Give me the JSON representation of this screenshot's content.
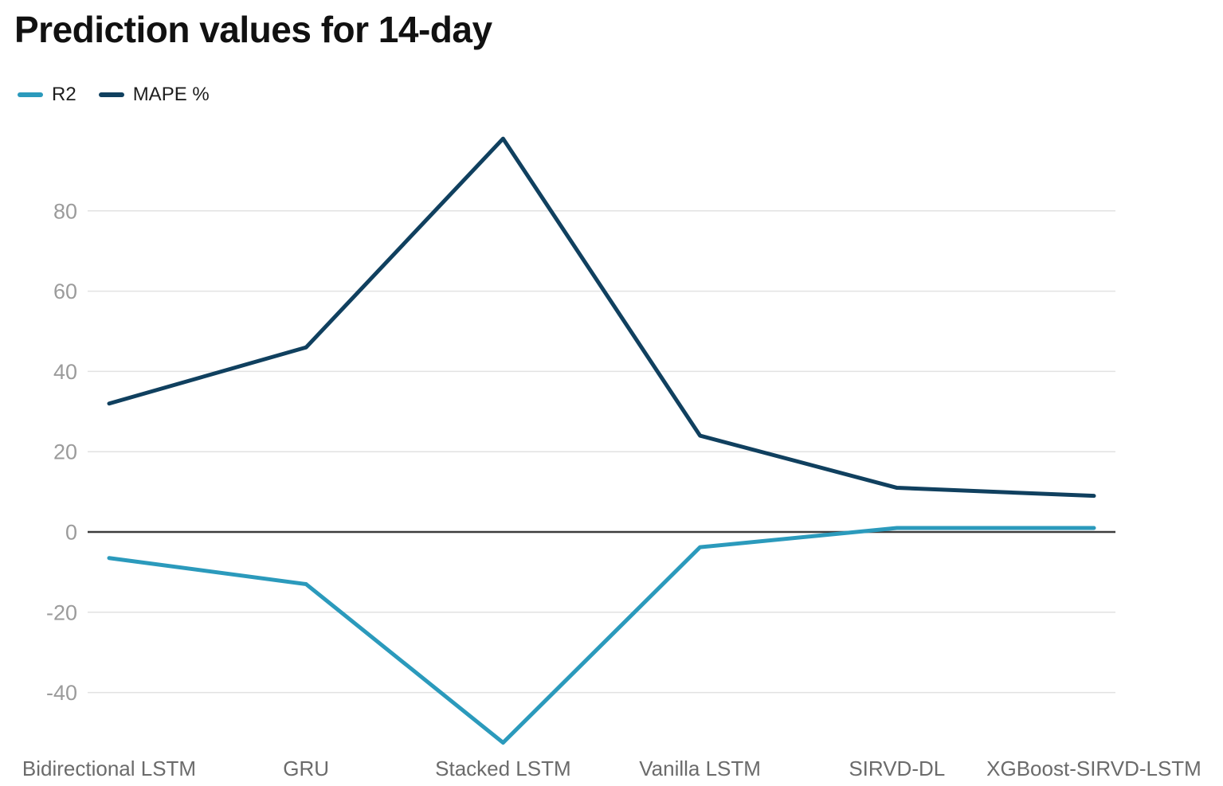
{
  "chart_data": {
    "type": "line",
    "title": "Prediction values for 14-day",
    "categories": [
      "Bidirectional LSTM",
      "GRU",
      "Stacked LSTM",
      "Vanilla LSTM",
      "SIRVD-DL",
      "XGBoost-SIRVD-LSTM"
    ],
    "series": [
      {
        "name": "R2",
        "color": "#2b9abc",
        "values": [
          -6.5,
          -13,
          -52.5,
          -3.8,
          1,
          1
        ]
      },
      {
        "name": "MAPE %",
        "color": "#10405f",
        "values": [
          32,
          46,
          98,
          24,
          11,
          9
        ]
      }
    ],
    "yticks": [
      80,
      60,
      40,
      20,
      0,
      -20,
      -40
    ],
    "ylim": [
      -57,
      103
    ],
    "xlabel": "",
    "ylabel": "",
    "grid": true,
    "legend_position": "top-left",
    "zero_axis_highlighted": true
  },
  "colors": {
    "background": "#ffffff",
    "grid": "#e2e2e2",
    "zero_line": "#3d3d3d",
    "title_text": "#111111",
    "ytick_text": "#9b9b9b",
    "xtick_text": "#6b6b6b"
  }
}
